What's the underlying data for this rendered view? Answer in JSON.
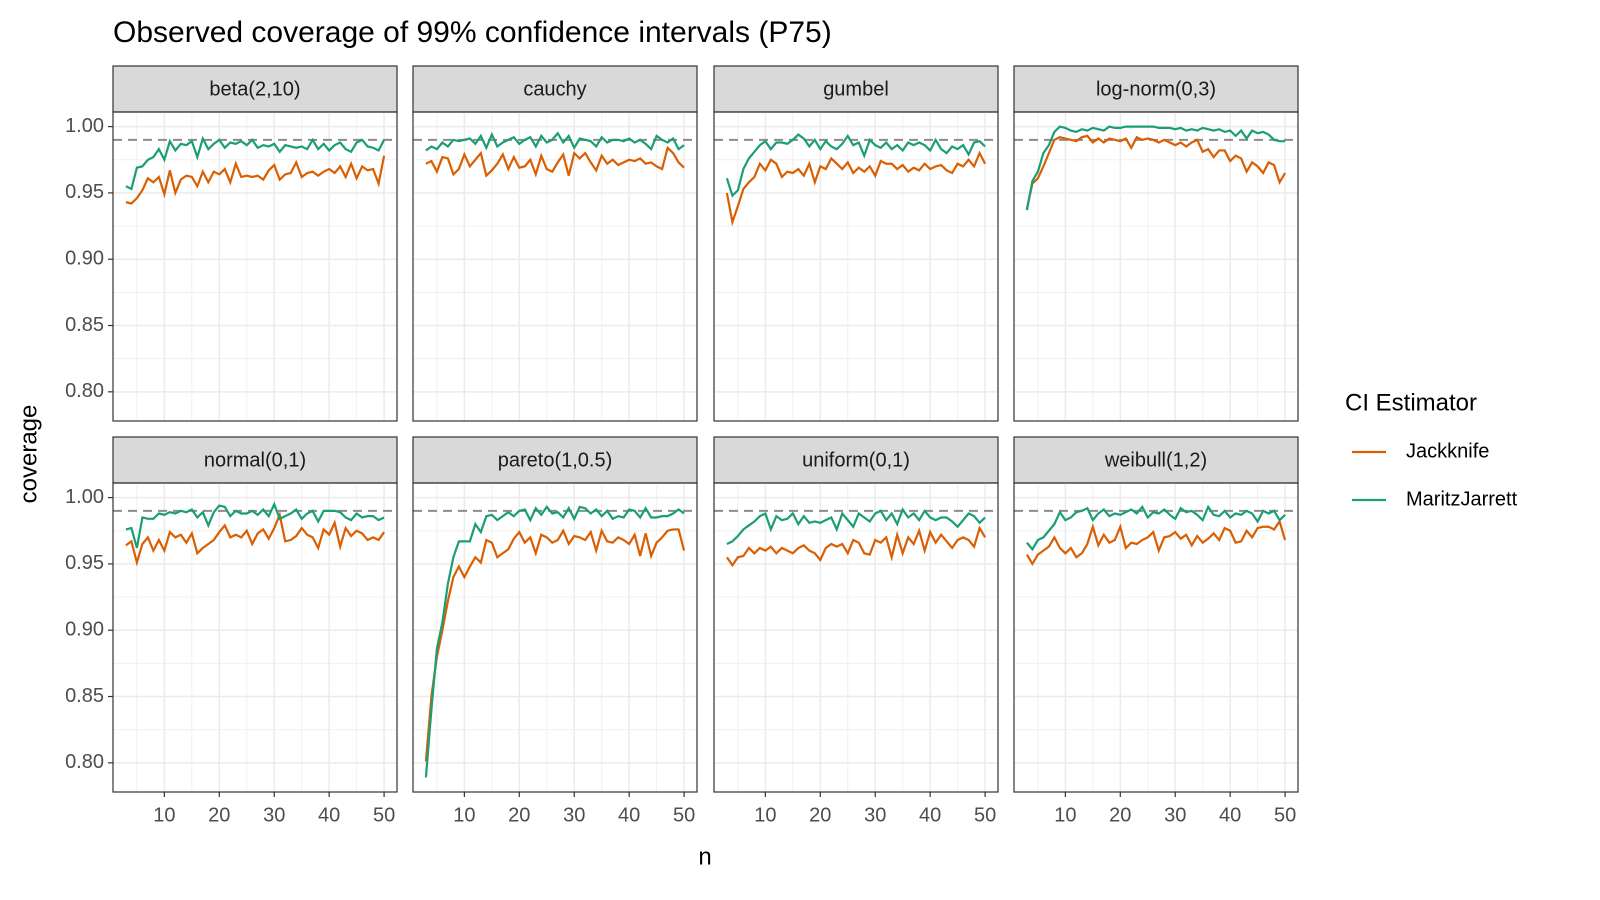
{
  "chart_data": {
    "type": "line",
    "title": "Observed coverage of 99% confidence intervals (P75)",
    "x_label": "n",
    "y_label": "coverage",
    "legend_title": "CI Estimator",
    "series": [
      {
        "name": "Jackknife",
        "color": "#d95f02"
      },
      {
        "name": "MaritzJarrett",
        "color": "#1b9e77"
      }
    ],
    "hline": 0.99,
    "x": [
      3,
      4,
      5,
      6,
      7,
      8,
      9,
      10,
      11,
      12,
      13,
      14,
      15,
      16,
      17,
      18,
      19,
      20,
      21,
      22,
      23,
      24,
      25,
      26,
      27,
      28,
      29,
      30,
      31,
      32,
      33,
      34,
      35,
      36,
      37,
      38,
      39,
      40,
      41,
      42,
      43,
      44,
      45,
      46,
      47,
      48,
      49,
      50
    ],
    "xlim": [
      0.65,
      52.35
    ],
    "xticks": [
      10,
      20,
      30,
      40,
      50
    ],
    "ylim": [
      0.778,
      1.011
    ],
    "yticks": [
      {
        "value": 0.8,
        "label": "0.80"
      },
      {
        "value": 0.85,
        "label": "0.85"
      },
      {
        "value": 0.9,
        "label": "0.90"
      },
      {
        "value": 0.95,
        "label": "0.95"
      },
      {
        "value": 1.0,
        "label": "1.00"
      }
    ],
    "grid": true,
    "facets": [
      {
        "title": "beta(2,10)",
        "values": [
          [
            0.943,
            0.942,
            0.946,
            0.952,
            0.961,
            0.958,
            0.962,
            0.949,
            0.967,
            0.95,
            0.96,
            0.963,
            0.962,
            0.955,
            0.966,
            0.958,
            0.966,
            0.964,
            0.968,
            0.958,
            0.972,
            0.962,
            0.963,
            0.962,
            0.963,
            0.96,
            0.967,
            0.971,
            0.96,
            0.964,
            0.965,
            0.973,
            0.962,
            0.965,
            0.966,
            0.963,
            0.966,
            0.968,
            0.965,
            0.97,
            0.962,
            0.972,
            0.961,
            0.97,
            0.967,
            0.968,
            0.957,
            0.978
          ],
          [
            0.955,
            0.953,
            0.969,
            0.97,
            0.975,
            0.977,
            0.983,
            0.975,
            0.989,
            0.982,
            0.987,
            0.986,
            0.989,
            0.977,
            0.991,
            0.983,
            0.987,
            0.99,
            0.984,
            0.988,
            0.987,
            0.989,
            0.986,
            0.99,
            0.984,
            0.986,
            0.985,
            0.987,
            0.981,
            0.986,
            0.985,
            0.984,
            0.985,
            0.983,
            0.99,
            0.983,
            0.987,
            0.982,
            0.986,
            0.988,
            0.983,
            0.981,
            0.988,
            0.99,
            0.985,
            0.984,
            0.982,
            0.99
          ]
        ]
      },
      {
        "title": "cauchy",
        "values": [
          [
            0.972,
            0.974,
            0.966,
            0.977,
            0.976,
            0.964,
            0.968,
            0.979,
            0.97,
            0.975,
            0.98,
            0.963,
            0.967,
            0.972,
            0.979,
            0.968,
            0.977,
            0.969,
            0.97,
            0.975,
            0.964,
            0.978,
            0.968,
            0.966,
            0.973,
            0.979,
            0.963,
            0.98,
            0.976,
            0.98,
            0.973,
            0.967,
            0.978,
            0.972,
            0.975,
            0.971,
            0.973,
            0.975,
            0.974,
            0.976,
            0.972,
            0.973,
            0.97,
            0.968,
            0.984,
            0.98,
            0.973,
            0.969
          ],
          [
            0.982,
            0.985,
            0.983,
            0.988,
            0.985,
            0.99,
            0.989,
            0.99,
            0.991,
            0.987,
            0.993,
            0.984,
            0.994,
            0.985,
            0.988,
            0.99,
            0.992,
            0.987,
            0.99,
            0.992,
            0.985,
            0.993,
            0.988,
            0.99,
            0.995,
            0.988,
            0.993,
            0.984,
            0.991,
            0.99,
            0.989,
            0.985,
            0.992,
            0.988,
            0.99,
            0.99,
            0.989,
            0.991,
            0.988,
            0.99,
            0.987,
            0.983,
            0.993,
            0.99,
            0.988,
            0.991,
            0.983,
            0.986
          ]
        ]
      },
      {
        "title": "gumbel",
        "values": [
          [
            0.95,
            0.928,
            0.94,
            0.953,
            0.958,
            0.962,
            0.972,
            0.967,
            0.975,
            0.972,
            0.962,
            0.966,
            0.965,
            0.968,
            0.963,
            0.972,
            0.958,
            0.97,
            0.968,
            0.976,
            0.972,
            0.968,
            0.973,
            0.965,
            0.969,
            0.966,
            0.97,
            0.963,
            0.974,
            0.972,
            0.972,
            0.968,
            0.971,
            0.966,
            0.969,
            0.967,
            0.972,
            0.968,
            0.97,
            0.971,
            0.967,
            0.965,
            0.972,
            0.97,
            0.975,
            0.97,
            0.98,
            0.972
          ],
          [
            0.961,
            0.948,
            0.952,
            0.968,
            0.976,
            0.981,
            0.986,
            0.989,
            0.983,
            0.988,
            0.988,
            0.987,
            0.99,
            0.994,
            0.991,
            0.985,
            0.99,
            0.983,
            0.989,
            0.985,
            0.983,
            0.987,
            0.993,
            0.986,
            0.988,
            0.978,
            0.99,
            0.986,
            0.984,
            0.988,
            0.983,
            0.986,
            0.982,
            0.988,
            0.986,
            0.988,
            0.986,
            0.982,
            0.99,
            0.983,
            0.98,
            0.985,
            0.983,
            0.986,
            0.979,
            0.988,
            0.989,
            0.985
          ]
        ]
      },
      {
        "title": "log-norm(0,3)",
        "values": [
          [
            0.938,
            0.957,
            0.961,
            0.97,
            0.98,
            0.99,
            0.992,
            0.991,
            0.99,
            0.989,
            0.992,
            0.993,
            0.988,
            0.991,
            0.988,
            0.991,
            0.99,
            0.989,
            0.991,
            0.984,
            0.992,
            0.99,
            0.991,
            0.99,
            0.988,
            0.99,
            0.988,
            0.986,
            0.988,
            0.985,
            0.988,
            0.99,
            0.981,
            0.983,
            0.977,
            0.982,
            0.982,
            0.974,
            0.978,
            0.976,
            0.966,
            0.973,
            0.97,
            0.965,
            0.973,
            0.971,
            0.958,
            0.965
          ],
          [
            0.937,
            0.959,
            0.966,
            0.98,
            0.986,
            0.996,
            1.0,
            0.999,
            0.997,
            0.996,
            0.998,
            0.997,
            0.999,
            0.998,
            0.997,
            1.0,
            0.999,
            0.999,
            1.0,
            1.0,
            1.0,
            1.0,
            1.0,
            1.0,
            0.999,
            0.999,
            0.999,
            0.998,
            0.999,
            0.997,
            0.998,
            0.997,
            0.999,
            0.998,
            0.997,
            0.998,
            0.996,
            0.997,
            0.993,
            0.997,
            0.991,
            0.997,
            0.995,
            0.996,
            0.994,
            0.99,
            0.989,
            0.989
          ]
        ]
      },
      {
        "title": "normal(0,1)",
        "values": [
          [
            0.964,
            0.967,
            0.951,
            0.965,
            0.97,
            0.96,
            0.968,
            0.96,
            0.974,
            0.97,
            0.972,
            0.966,
            0.973,
            0.958,
            0.962,
            0.965,
            0.968,
            0.974,
            0.979,
            0.97,
            0.972,
            0.97,
            0.975,
            0.965,
            0.973,
            0.976,
            0.969,
            0.977,
            0.987,
            0.967,
            0.968,
            0.971,
            0.977,
            0.972,
            0.97,
            0.962,
            0.976,
            0.972,
            0.981,
            0.963,
            0.977,
            0.971,
            0.975,
            0.973,
            0.968,
            0.97,
            0.968,
            0.974
          ],
          [
            0.976,
            0.977,
            0.962,
            0.985,
            0.984,
            0.984,
            0.988,
            0.987,
            0.989,
            0.988,
            0.99,
            0.989,
            0.991,
            0.985,
            0.989,
            0.979,
            0.989,
            0.994,
            0.993,
            0.986,
            0.99,
            0.988,
            0.988,
            0.99,
            0.987,
            0.991,
            0.986,
            0.995,
            0.984,
            0.986,
            0.988,
            0.991,
            0.984,
            0.988,
            0.99,
            0.982,
            0.99,
            0.99,
            0.99,
            0.989,
            0.985,
            0.983,
            0.988,
            0.985,
            0.986,
            0.986,
            0.983,
            0.985
          ]
        ]
      },
      {
        "title": "pareto(1,0.5)",
        "values": [
          [
            0.801,
            0.85,
            0.88,
            0.9,
            0.922,
            0.94,
            0.948,
            0.94,
            0.948,
            0.955,
            0.951,
            0.968,
            0.966,
            0.955,
            0.958,
            0.961,
            0.969,
            0.974,
            0.966,
            0.97,
            0.958,
            0.972,
            0.97,
            0.966,
            0.968,
            0.975,
            0.965,
            0.971,
            0.97,
            0.968,
            0.974,
            0.96,
            0.975,
            0.967,
            0.966,
            0.97,
            0.968,
            0.965,
            0.972,
            0.956,
            0.973,
            0.956,
            0.966,
            0.97,
            0.975,
            0.976,
            0.976,
            0.96
          ],
          [
            0.789,
            0.84,
            0.886,
            0.906,
            0.935,
            0.955,
            0.967,
            0.967,
            0.967,
            0.98,
            0.974,
            0.986,
            0.987,
            0.983,
            0.986,
            0.989,
            0.986,
            0.99,
            0.991,
            0.983,
            0.992,
            0.987,
            0.993,
            0.988,
            0.989,
            0.985,
            0.992,
            0.984,
            0.993,
            0.992,
            0.988,
            0.991,
            0.986,
            0.99,
            0.984,
            0.986,
            0.985,
            0.991,
            0.99,
            0.985,
            0.992,
            0.985,
            0.985,
            0.986,
            0.986,
            0.988,
            0.991,
            0.988
          ]
        ]
      },
      {
        "title": "uniform(0,1)",
        "values": [
          [
            0.955,
            0.949,
            0.955,
            0.956,
            0.962,
            0.958,
            0.962,
            0.96,
            0.963,
            0.958,
            0.962,
            0.96,
            0.958,
            0.962,
            0.964,
            0.96,
            0.958,
            0.953,
            0.962,
            0.965,
            0.963,
            0.965,
            0.958,
            0.968,
            0.966,
            0.958,
            0.957,
            0.968,
            0.966,
            0.97,
            0.955,
            0.972,
            0.958,
            0.97,
            0.965,
            0.975,
            0.96,
            0.974,
            0.966,
            0.972,
            0.967,
            0.962,
            0.968,
            0.97,
            0.968,
            0.963,
            0.977,
            0.97
          ],
          [
            0.965,
            0.967,
            0.971,
            0.976,
            0.979,
            0.982,
            0.986,
            0.988,
            0.976,
            0.986,
            0.983,
            0.984,
            0.988,
            0.98,
            0.986,
            0.981,
            0.982,
            0.981,
            0.983,
            0.985,
            0.976,
            0.988,
            0.983,
            0.978,
            0.988,
            0.985,
            0.982,
            0.988,
            0.99,
            0.983,
            0.988,
            0.98,
            0.991,
            0.985,
            0.988,
            0.983,
            0.99,
            0.985,
            0.983,
            0.985,
            0.985,
            0.982,
            0.978,
            0.983,
            0.988,
            0.986,
            0.981,
            0.985
          ]
        ]
      },
      {
        "title": "weibull(1,2)",
        "values": [
          [
            0.957,
            0.95,
            0.957,
            0.96,
            0.963,
            0.97,
            0.962,
            0.958,
            0.962,
            0.955,
            0.958,
            0.965,
            0.978,
            0.964,
            0.972,
            0.966,
            0.968,
            0.978,
            0.962,
            0.966,
            0.965,
            0.968,
            0.97,
            0.974,
            0.96,
            0.97,
            0.971,
            0.974,
            0.969,
            0.972,
            0.964,
            0.971,
            0.966,
            0.969,
            0.973,
            0.968,
            0.977,
            0.975,
            0.966,
            0.967,
            0.975,
            0.97,
            0.977,
            0.978,
            0.978,
            0.976,
            0.982,
            0.968
          ],
          [
            0.966,
            0.961,
            0.968,
            0.97,
            0.975,
            0.98,
            0.989,
            0.983,
            0.985,
            0.989,
            0.99,
            0.992,
            0.983,
            0.988,
            0.991,
            0.986,
            0.988,
            0.987,
            0.989,
            0.991,
            0.988,
            0.993,
            0.985,
            0.989,
            0.988,
            0.991,
            0.987,
            0.984,
            0.992,
            0.989,
            0.99,
            0.987,
            0.983,
            0.993,
            0.987,
            0.986,
            0.99,
            0.985,
            0.988,
            0.987,
            0.99,
            0.988,
            0.982,
            0.99,
            0.988,
            0.99,
            0.983,
            0.987
          ]
        ]
      }
    ]
  }
}
